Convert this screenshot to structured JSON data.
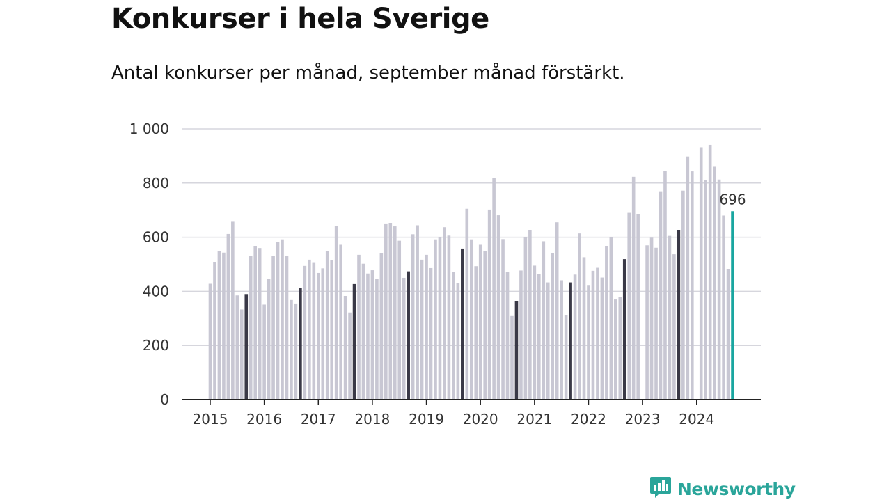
{
  "title": "Konkurser i hela Sverige",
  "subtitle": "Antal konkurser per månad, september månad förstärkt.",
  "brand": {
    "name": "Newsworthy",
    "icon": "newsworthy-logo-icon"
  },
  "colors": {
    "normal": "#c8c7d3",
    "september": "#3a3947",
    "latest": "#19a6a0",
    "grid": "#d6d6dd",
    "axis": "#222222"
  },
  "chart_data": {
    "type": "bar",
    "title": "Konkurser i hela Sverige",
    "xlabel": "",
    "ylabel": "",
    "ylim": [
      0,
      1000
    ],
    "yticks": [
      0,
      200,
      400,
      600,
      800,
      1000
    ],
    "ytick_labels": [
      "0",
      "200",
      "400",
      "600",
      "800",
      "1 000"
    ],
    "grid": true,
    "xticks": [
      "2015",
      "2016",
      "2017",
      "2018",
      "2019",
      "2020",
      "2021",
      "2022",
      "2023",
      "2024"
    ],
    "highlight": "september",
    "last_value_label": "696",
    "series": [
      {
        "year": 2015,
        "values": [
          428,
          508,
          550,
          543,
          612,
          657,
          385,
          333,
          390,
          532,
          567,
          560
        ]
      },
      {
        "year": 2016,
        "values": [
          351,
          447,
          532,
          583,
          592,
          530,
          368,
          355,
          413,
          494,
          517,
          505
        ]
      },
      {
        "year": 2017,
        "values": [
          468,
          485,
          549,
          516,
          642,
          572,
          383,
          322,
          427,
          535,
          502,
          466
        ]
      },
      {
        "year": 2018,
        "values": [
          478,
          446,
          542,
          648,
          652,
          640,
          587,
          450,
          474,
          611,
          644,
          517
        ]
      },
      {
        "year": 2019,
        "values": [
          535,
          486,
          592,
          600,
          637,
          606,
          471,
          431,
          558,
          705,
          592,
          493
        ]
      },
      {
        "year": 2020,
        "values": [
          572,
          548,
          702,
          820,
          681,
          593,
          473,
          309,
          364,
          477,
          600,
          627
        ]
      },
      {
        "year": 2021,
        "values": [
          495,
          463,
          585,
          433,
          541,
          655,
          441,
          313,
          433,
          462,
          614,
          526
        ]
      },
      {
        "year": 2022,
        "values": [
          421,
          476,
          487,
          451,
          568,
          600,
          370,
          379,
          519,
          690,
          823,
          686
        ]
      },
      {
        "year": 2023,
        "values": [
          null,
          570,
          598,
          561,
          767,
          844,
          605,
          537,
          627,
          772,
          898,
          843
        ]
      },
      {
        "year": 2024,
        "values": [
          null,
          932,
          810,
          941,
          860,
          813,
          680,
          483,
          696
        ]
      }
    ]
  }
}
